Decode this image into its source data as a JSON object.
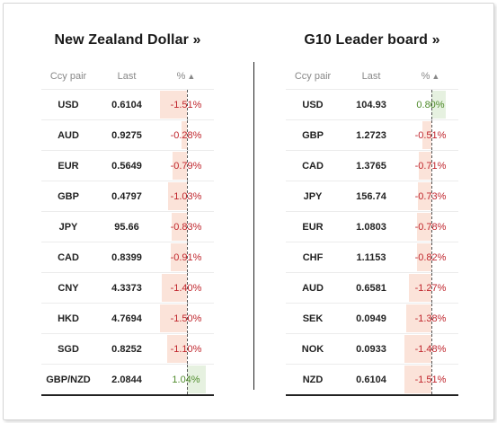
{
  "left": {
    "title": "New Zealand Dollar »",
    "headers": {
      "pair": "Ccy pair",
      "last": "Last",
      "pct": "%"
    },
    "rows": [
      {
        "pair": "USD",
        "last": "0.6104",
        "pct": "-1.51%",
        "value": -1.51
      },
      {
        "pair": "AUD",
        "last": "0.9275",
        "pct": "-0.28%",
        "value": -0.28
      },
      {
        "pair": "EUR",
        "last": "0.5649",
        "pct": "-0.79%",
        "value": -0.79
      },
      {
        "pair": "GBP",
        "last": "0.4797",
        "pct": "-1.03%",
        "value": -1.03
      },
      {
        "pair": "JPY",
        "last": "95.66",
        "pct": "-0.83%",
        "value": -0.83
      },
      {
        "pair": "CAD",
        "last": "0.8399",
        "pct": "-0.91%",
        "value": -0.91
      },
      {
        "pair": "CNY",
        "last": "4.3373",
        "pct": "-1.40%",
        "value": -1.4
      },
      {
        "pair": "HKD",
        "last": "4.7694",
        "pct": "-1.50%",
        "value": -1.5
      },
      {
        "pair": "SGD",
        "last": "0.8252",
        "pct": "-1.10%",
        "value": -1.1
      },
      {
        "pair": "GBP/NZD",
        "last": "2.0844",
        "pct": "1.04%",
        "value": 1.04
      }
    ]
  },
  "right": {
    "title": "G10 Leader board »",
    "headers": {
      "pair": "Ccy pair",
      "last": "Last",
      "pct": "%"
    },
    "rows": [
      {
        "pair": "USD",
        "last": "104.93",
        "pct": "0.80%",
        "value": 0.8
      },
      {
        "pair": "GBP",
        "last": "1.2723",
        "pct": "-0.51%",
        "value": -0.51
      },
      {
        "pair": "CAD",
        "last": "1.3765",
        "pct": "-0.71%",
        "value": -0.71
      },
      {
        "pair": "JPY",
        "last": "156.74",
        "pct": "-0.73%",
        "value": -0.73
      },
      {
        "pair": "EUR",
        "last": "1.0803",
        "pct": "-0.78%",
        "value": -0.78
      },
      {
        "pair": "CHF",
        "last": "1.1153",
        "pct": "-0.82%",
        "value": -0.82
      },
      {
        "pair": "AUD",
        "last": "0.6581",
        "pct": "-1.27%",
        "value": -1.27
      },
      {
        "pair": "SEK",
        "last": "0.0949",
        "pct": "-1.38%",
        "value": -1.38
      },
      {
        "pair": "NOK",
        "last": "0.0933",
        "pct": "-1.48%",
        "value": -1.48
      },
      {
        "pair": "NZD",
        "last": "0.6104",
        "pct": "-1.51%",
        "value": -1.51
      }
    ]
  },
  "icons": {
    "sort": "sort-ascending-icon"
  },
  "colors": {
    "negative": "#c0262d",
    "positive": "#4f8b2b",
    "negative_bar": "#fbe3d9",
    "positive_bar": "#e6f1e0"
  }
}
